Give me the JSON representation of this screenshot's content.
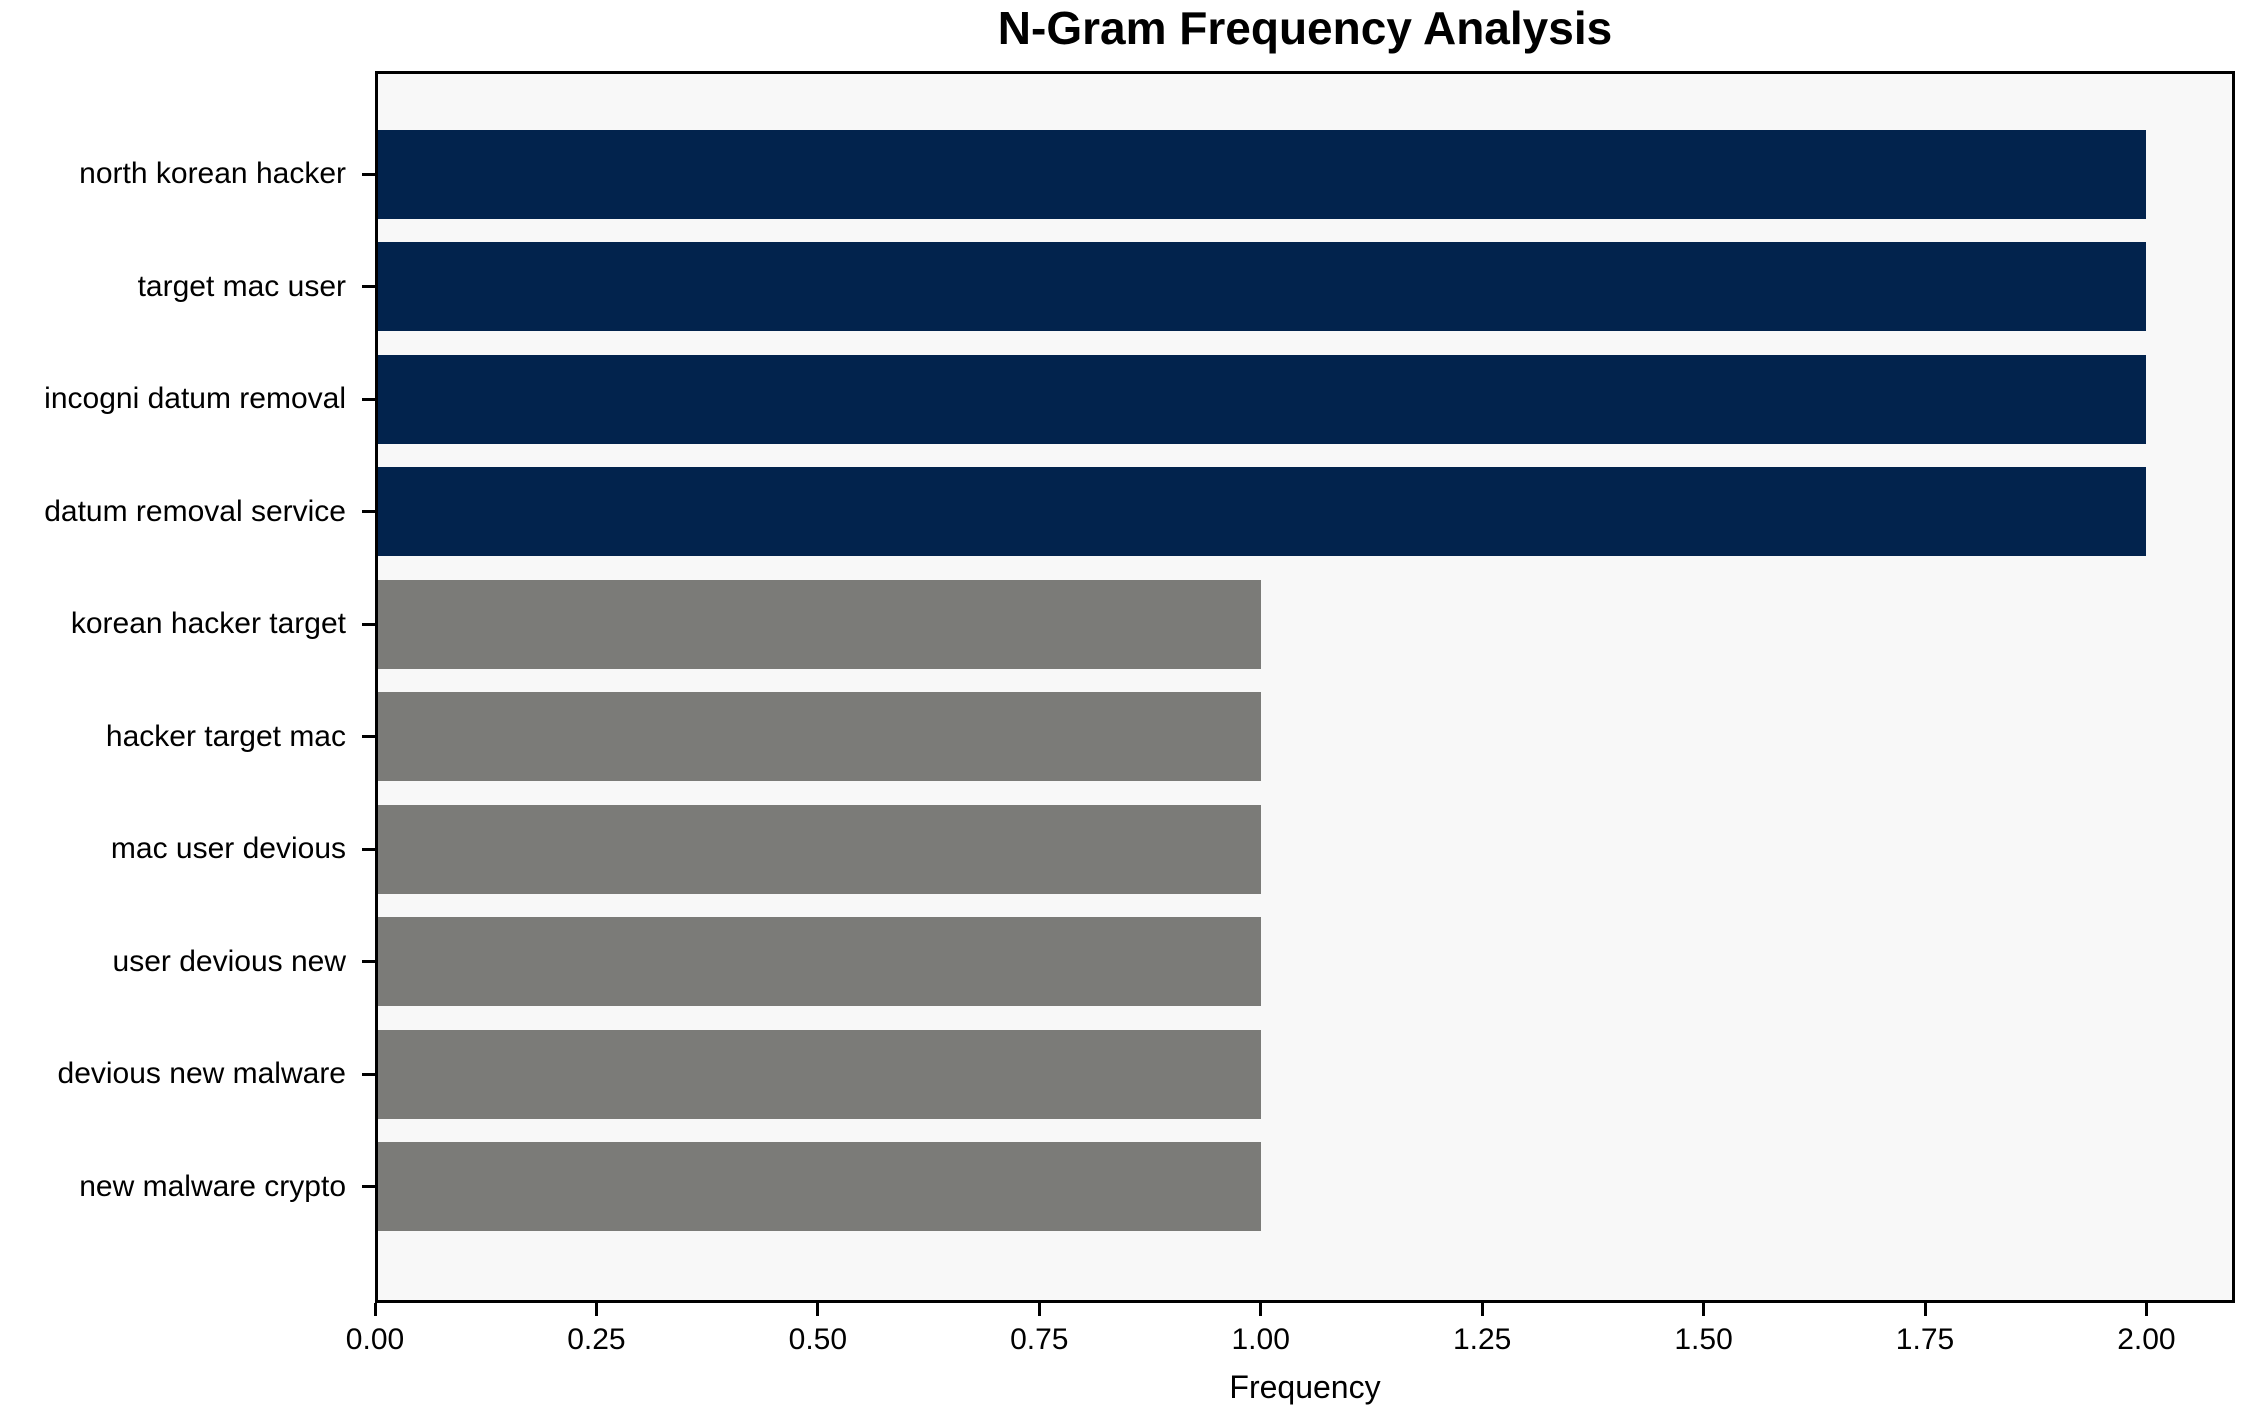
{
  "chart_data": {
    "type": "bar",
    "orientation": "horizontal",
    "title": "N-Gram Frequency Analysis",
    "xlabel": "Frequency",
    "categories": [
      "north korean hacker",
      "target mac user",
      "incogni datum removal",
      "datum removal service",
      "korean hacker target",
      "hacker target mac",
      "mac user devious",
      "user devious new",
      "devious new malware",
      "new malware crypto"
    ],
    "values": [
      2,
      2,
      2,
      2,
      1,
      1,
      1,
      1,
      1,
      1
    ],
    "bar_colors": [
      "#02234d",
      "#02234d",
      "#02234d",
      "#02234d",
      "#7b7b78",
      "#7b7b78",
      "#7b7b78",
      "#7b7b78",
      "#7b7b78",
      "#7b7b78"
    ],
    "highlight_color": "#02234d",
    "default_color": "#7b7b78",
    "xlim": [
      0,
      2.1
    ],
    "xticks": [
      0,
      0.25,
      0.5,
      0.75,
      1.0,
      1.25,
      1.5,
      1.75,
      2.0
    ],
    "xtick_labels": [
      "0.00",
      "0.25",
      "0.50",
      "0.75",
      "1.00",
      "1.25",
      "1.50",
      "1.75",
      "2.00"
    ],
    "grid": false,
    "legend": "none",
    "plot_background": "#f8f8f8",
    "text_color": "#000000"
  }
}
